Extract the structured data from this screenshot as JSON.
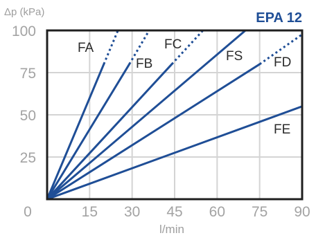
{
  "chart_data": {
    "type": "line",
    "title": "EPA 12",
    "xlabel": "l/min",
    "ylabel": "Δp (kPa)",
    "xlim": [
      0,
      90
    ],
    "ylim": [
      0,
      100
    ],
    "x_ticks": [
      "0",
      "15",
      "30",
      "45",
      "60",
      "75",
      "90"
    ],
    "y_ticks": [
      "25",
      "50",
      "75",
      "100"
    ],
    "grid": true,
    "line_color": "#1f4e96",
    "series": [
      {
        "name": "FA",
        "solid": [
          [
            0,
            0
          ],
          [
            20,
            80
          ]
        ],
        "dotted": [
          [
            20,
            80
          ],
          [
            25,
            100
          ]
        ]
      },
      {
        "name": "FB",
        "solid": [
          [
            0,
            0
          ],
          [
            29,
            80
          ]
        ],
        "dotted": [
          [
            29,
            80
          ],
          [
            36,
            100
          ]
        ]
      },
      {
        "name": "FC",
        "solid": [
          [
            0,
            0
          ],
          [
            44,
            80
          ]
        ],
        "dotted": [
          [
            44,
            80
          ],
          [
            55,
            100
          ]
        ]
      },
      {
        "name": "FS",
        "solid": [
          [
            0,
            0
          ],
          [
            70,
            100
          ]
        ],
        "dotted": []
      },
      {
        "name": "FD",
        "solid": [
          [
            0,
            0
          ],
          [
            75,
            80
          ]
        ],
        "dotted": [
          [
            75,
            80
          ],
          [
            92,
            100
          ]
        ]
      },
      {
        "name": "FE",
        "solid": [
          [
            0,
            0
          ],
          [
            90,
            55
          ]
        ],
        "dotted": []
      }
    ]
  }
}
